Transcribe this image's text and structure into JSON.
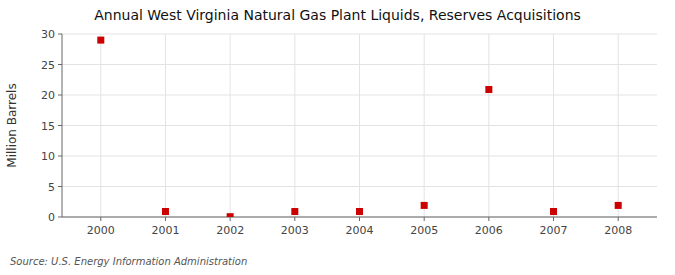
{
  "chart_data": {
    "type": "scatter",
    "title": "Annual West Virginia Natural Gas Plant Liquids, Reserves Acquisitions",
    "ylabel": "Million Barrels",
    "annotations": [
      "Source: U.S. Energy Information Administration"
    ],
    "x": [
      2000,
      2001,
      2002,
      2003,
      2004,
      2005,
      2006,
      2007,
      2008
    ],
    "values": [
      29.0,
      0.9,
      0.05,
      0.9,
      0.9,
      1.9,
      20.9,
      0.9,
      1.9
    ],
    "color": "#cc0000",
    "marker": "square",
    "xlim": [
      1999.4,
      2008.6
    ],
    "ylim": [
      0,
      30
    ],
    "xticks": [
      2000,
      2001,
      2002,
      2003,
      2004,
      2005,
      2006,
      2007,
      2008
    ],
    "yticks": [
      0,
      5,
      10,
      15,
      20,
      25,
      30
    ],
    "grid": true
  }
}
